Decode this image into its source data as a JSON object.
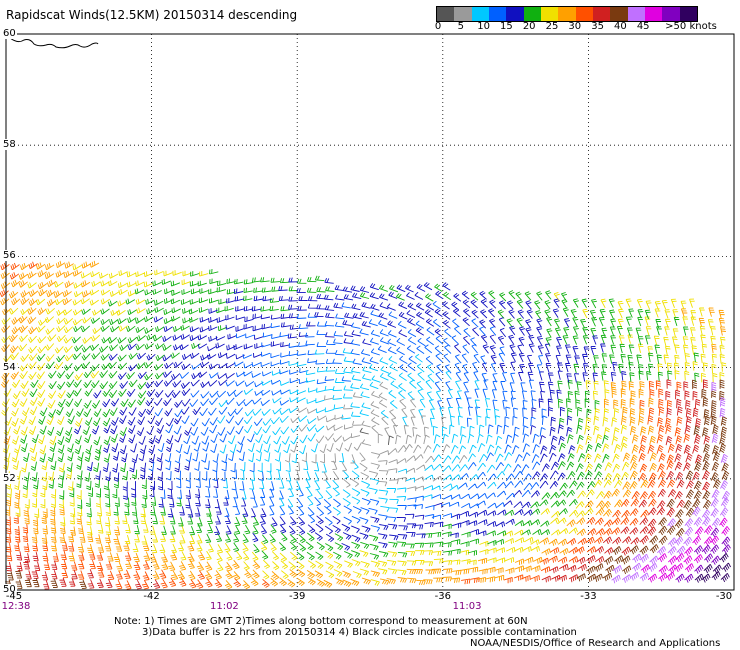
{
  "title": "Rapidscat Winds(12.5KM) 20150314 descending",
  "colorbar": {
    "colors": [
      "#555555",
      "#9a9a9a",
      "#00c8ff",
      "#0060ff",
      "#1010c0",
      "#10b010",
      "#f0e000",
      "#ffa000",
      "#ff5000",
      "#d02020",
      "#7a3a10",
      "#c070ff",
      "#e000e0",
      "#8000c0",
      "#300060"
    ],
    "labels": [
      {
        "text": "0",
        "value": 0
      },
      {
        "text": "5",
        "value": 5
      },
      {
        "text": "10",
        "value": 10
      },
      {
        "text": "15",
        "value": 15
      },
      {
        "text": "20",
        "value": 20
      },
      {
        "text": "25",
        "value": 25
      },
      {
        "text": "30",
        "value": 30
      },
      {
        "text": "35",
        "value": 35
      },
      {
        "text": "40",
        "value": 40
      },
      {
        "text": "45",
        "value": 45
      },
      {
        "text": ">50 knots",
        "value": 51
      }
    ]
  },
  "map": {
    "lon_range": [
      -45,
      -30
    ],
    "lat_range": [
      50,
      60
    ],
    "lat_labels": [
      {
        "text": "60",
        "lat": 60
      },
      {
        "text": "58",
        "lat": 58
      },
      {
        "text": "56",
        "lat": 56
      },
      {
        "text": "54",
        "lat": 54
      },
      {
        "text": "52",
        "lat": 52
      },
      {
        "text": "50",
        "lat": 50
      }
    ],
    "lon_labels": [
      {
        "text": "-45",
        "lon": -45
      },
      {
        "text": "-42",
        "lon": -42
      },
      {
        "text": "-39",
        "lon": -39
      },
      {
        "text": "-36",
        "lon": -36
      },
      {
        "text": "-33",
        "lon": -33
      },
      {
        "text": "-30",
        "lon": -30
      }
    ],
    "time_labels": [
      {
        "text": "12:38",
        "lon": -45
      },
      {
        "text": "11:02",
        "lon": -40.5
      },
      {
        "text": "11:03",
        "lon": -35.5
      }
    ],
    "swath_northern_edge_lat_west": 56.0,
    "swath_northern_edge_lat_east": 55.0,
    "wind_pattern": "cyclonic low centered near 52.6N -37.5 with weak cyan/blue core, green/yellow belt, orange/red strong winds in south and southeast"
  },
  "notes": {
    "line1": "Note: 1) Times are GMT 2)Times along bottom correspond to measurement at 60N",
    "line2": "3)Data buffer is 22 hrs from 20150314 4) Black circles indicate possible contamination"
  },
  "credit": "NOAA/NESDIS/Office of Research and Applications"
}
